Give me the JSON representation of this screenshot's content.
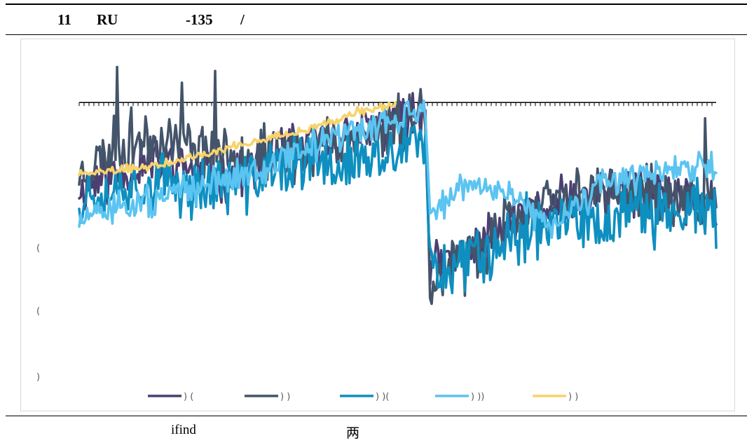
{
  "header": {
    "t1": "11",
    "t2": "RU",
    "t3": "-135",
    "t4": "/"
  },
  "footer": {
    "source": "ifind",
    "note": "两"
  },
  "chart_data": {
    "type": "line",
    "title": "",
    "xlabel": "",
    "ylabel": "",
    "ylim": [
      -4,
      4
    ],
    "y_tick_labels": [
      "(",
      "(",
      ")"
    ],
    "legend_position": "bottom",
    "grid": false,
    "baseline": {
      "y": 3.0,
      "dashed": true,
      "color": "#000000"
    },
    "series": [
      {
        "name": ") (",
        "color": "#4b3f72",
        "base": [
          [
            0,
            0.8
          ],
          [
            30,
            1.3
          ],
          [
            60,
            1.5
          ],
          [
            90,
            1.1
          ],
          [
            120,
            1.6
          ],
          [
            150,
            2.0
          ],
          [
            180,
            2.3
          ],
          [
            200,
            2.6
          ],
          [
            219,
            2.8
          ],
          [
            222,
            -1.2
          ],
          [
            240,
            -0.9
          ],
          [
            270,
            -0.2
          ],
          [
            300,
            0.4
          ],
          [
            330,
            0.7
          ],
          [
            360,
            0.8
          ],
          [
            390,
            0.7
          ],
          [
            403,
            0.3
          ]
        ],
        "noise": 0.45,
        "seed": 11
      },
      {
        "name": ") )",
        "color": "#44546a",
        "base": [
          [
            0,
            1.2
          ],
          [
            20,
            1.8
          ],
          [
            40,
            2.1
          ],
          [
            60,
            2.1
          ],
          [
            90,
            1.8
          ],
          [
            120,
            1.6
          ],
          [
            150,
            1.9
          ],
          [
            180,
            2.2
          ],
          [
            200,
            2.5
          ],
          [
            219,
            2.8
          ],
          [
            222,
            -1.6
          ],
          [
            240,
            -1.1
          ],
          [
            270,
            -0.1
          ],
          [
            300,
            0.5
          ],
          [
            330,
            0.8
          ],
          [
            360,
            0.6
          ],
          [
            390,
            0.4
          ],
          [
            403,
            0.6
          ]
        ],
        "noise": 0.55,
        "seed": 23,
        "spikes": [
          [
            24,
            3.9
          ],
          [
            65,
            3.5
          ],
          [
            86,
            3.8
          ],
          [
            244,
            -1.9
          ],
          [
            396,
            2.6
          ]
        ]
      },
      {
        "name": ") )(",
        "color": "#0e8fc0",
        "base": [
          [
            0,
            0.6
          ],
          [
            30,
            1.0
          ],
          [
            60,
            0.9
          ],
          [
            90,
            0.9
          ],
          [
            120,
            1.2
          ],
          [
            150,
            1.4
          ],
          [
            180,
            1.5
          ],
          [
            200,
            1.7
          ],
          [
            219,
            2.0
          ],
          [
            222,
            -1.3
          ],
          [
            240,
            -1.0
          ],
          [
            270,
            -0.4
          ],
          [
            300,
            0.1
          ],
          [
            330,
            -0.1
          ],
          [
            360,
            0.2
          ],
          [
            390,
            0.3
          ],
          [
            403,
            0.0
          ]
        ],
        "noise": 0.6,
        "seed": 37
      },
      {
        "name": ") ))",
        "color": "#5bc4f1",
        "base": [
          [
            0,
            0.0
          ],
          [
            30,
            0.4
          ],
          [
            50,
            0.5
          ],
          [
            70,
            0.8
          ],
          [
            100,
            1.1
          ],
          [
            130,
            1.6
          ],
          [
            160,
            2.1
          ],
          [
            190,
            2.4
          ],
          [
            210,
            2.8
          ],
          [
            219,
            2.8
          ],
          [
            222,
            0.2
          ],
          [
            240,
            0.8
          ],
          [
            270,
            0.8
          ],
          [
            300,
            -0.2
          ],
          [
            330,
            0.9
          ],
          [
            360,
            1.2
          ],
          [
            390,
            1.3
          ],
          [
            403,
            1.5
          ]
        ],
        "noise": 0.3,
        "seed": 51
      },
      {
        "name": ") )",
        "color": "#f8d36b",
        "base": [
          [
            0,
            1.2
          ],
          [
            20,
            1.3
          ],
          [
            50,
            1.4
          ],
          [
            80,
            1.7
          ],
          [
            100,
            1.9
          ],
          [
            120,
            2.1
          ],
          [
            150,
            2.4
          ],
          [
            170,
            2.7
          ],
          [
            190,
            2.9
          ],
          [
            200,
            2.9
          ]
        ],
        "noise": 0.08,
        "seed": 63
      }
    ]
  }
}
